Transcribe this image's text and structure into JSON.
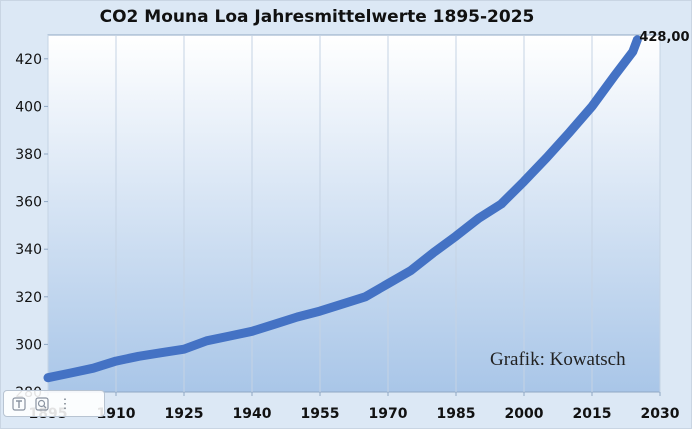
{
  "chart_data": {
    "type": "line",
    "title": "CO2 Mouna Loa Jahresmittelwerte 1895-2025",
    "xlabel": "",
    "ylabel": "",
    "xlim": [
      1895,
      2030
    ],
    "ylim": [
      280,
      430
    ],
    "x_ticks": [
      "1895",
      "1910",
      "1925",
      "1940",
      "1955",
      "1970",
      "1985",
      "2000",
      "2015",
      "2030"
    ],
    "y_ticks": [
      "280",
      "300",
      "320",
      "340",
      "360",
      "380",
      "400",
      "420"
    ],
    "grid": {
      "vertical": true,
      "horizontal": false
    },
    "legend": "none",
    "series_color": "#4472c4",
    "series": [
      {
        "x": [
          1895,
          1900,
          1905,
          1910,
          1915,
          1920,
          1925,
          1930,
          1935,
          1940,
          1945,
          1950,
          1955,
          1960,
          1965,
          1970,
          1975,
          1980,
          1985,
          1990,
          1995,
          2000,
          2005,
          2010,
          2015,
          2020,
          2024,
          2025
        ],
        "values": [
          286,
          288,
          290,
          293,
          295,
          296.5,
          298,
          301.5,
          303.5,
          305.5,
          308.5,
          311.5,
          314,
          317,
          320,
          325.5,
          331,
          338.5,
          345.5,
          353,
          359,
          368.5,
          378.5,
          389,
          400,
          413,
          423,
          428
        ]
      }
    ],
    "annotations": [
      {
        "text": "428,00",
        "x": 2025,
        "y": 428
      }
    ],
    "credit": "Grafik: Kowatsch"
  },
  "toolbar": {
    "buttons": [
      {
        "name": "text-format-icon"
      },
      {
        "name": "zoom-icon"
      },
      {
        "name": "more-options-icon",
        "label": "⋮"
      }
    ]
  }
}
